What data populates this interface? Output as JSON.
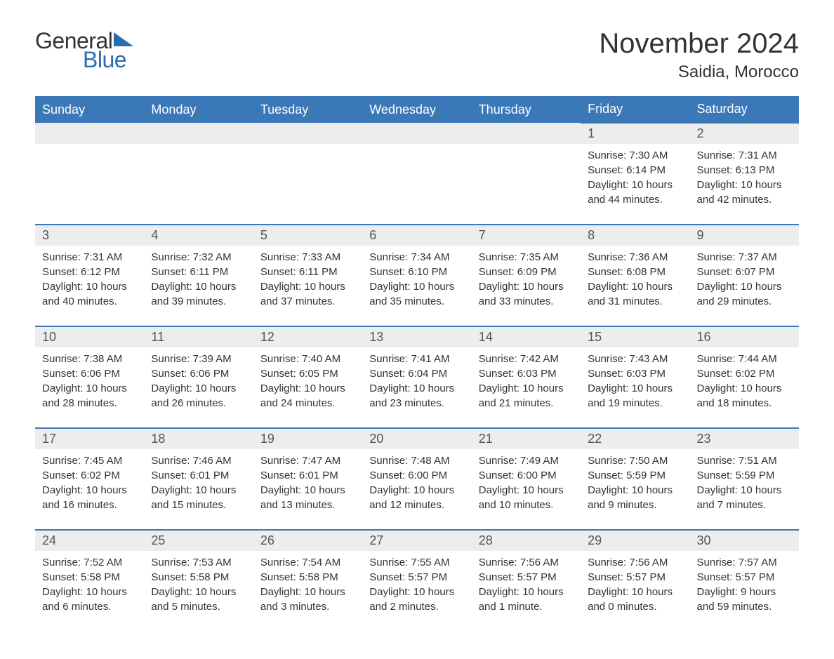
{
  "logo": {
    "text1": "General",
    "text2": "Blue",
    "tri_color": "#2b6cb0"
  },
  "title": "November 2024",
  "location": "Saidia, Morocco",
  "colors": {
    "header_bg": "#3b78b8",
    "header_text": "#ffffff",
    "daynum_bg": "#ededed",
    "text": "#333333",
    "border": "#3b78b8"
  },
  "day_headers": [
    "Sunday",
    "Monday",
    "Tuesday",
    "Wednesday",
    "Thursday",
    "Friday",
    "Saturday"
  ],
  "weeks": [
    [
      null,
      null,
      null,
      null,
      null,
      {
        "n": "1",
        "sunrise": "Sunrise: 7:30 AM",
        "sunset": "Sunset: 6:14 PM",
        "daylight": "Daylight: 10 hours and 44 minutes."
      },
      {
        "n": "2",
        "sunrise": "Sunrise: 7:31 AM",
        "sunset": "Sunset: 6:13 PM",
        "daylight": "Daylight: 10 hours and 42 minutes."
      }
    ],
    [
      {
        "n": "3",
        "sunrise": "Sunrise: 7:31 AM",
        "sunset": "Sunset: 6:12 PM",
        "daylight": "Daylight: 10 hours and 40 minutes."
      },
      {
        "n": "4",
        "sunrise": "Sunrise: 7:32 AM",
        "sunset": "Sunset: 6:11 PM",
        "daylight": "Daylight: 10 hours and 39 minutes."
      },
      {
        "n": "5",
        "sunrise": "Sunrise: 7:33 AM",
        "sunset": "Sunset: 6:11 PM",
        "daylight": "Daylight: 10 hours and 37 minutes."
      },
      {
        "n": "6",
        "sunrise": "Sunrise: 7:34 AM",
        "sunset": "Sunset: 6:10 PM",
        "daylight": "Daylight: 10 hours and 35 minutes."
      },
      {
        "n": "7",
        "sunrise": "Sunrise: 7:35 AM",
        "sunset": "Sunset: 6:09 PM",
        "daylight": "Daylight: 10 hours and 33 minutes."
      },
      {
        "n": "8",
        "sunrise": "Sunrise: 7:36 AM",
        "sunset": "Sunset: 6:08 PM",
        "daylight": "Daylight: 10 hours and 31 minutes."
      },
      {
        "n": "9",
        "sunrise": "Sunrise: 7:37 AM",
        "sunset": "Sunset: 6:07 PM",
        "daylight": "Daylight: 10 hours and 29 minutes."
      }
    ],
    [
      {
        "n": "10",
        "sunrise": "Sunrise: 7:38 AM",
        "sunset": "Sunset: 6:06 PM",
        "daylight": "Daylight: 10 hours and 28 minutes."
      },
      {
        "n": "11",
        "sunrise": "Sunrise: 7:39 AM",
        "sunset": "Sunset: 6:06 PM",
        "daylight": "Daylight: 10 hours and 26 minutes."
      },
      {
        "n": "12",
        "sunrise": "Sunrise: 7:40 AM",
        "sunset": "Sunset: 6:05 PM",
        "daylight": "Daylight: 10 hours and 24 minutes."
      },
      {
        "n": "13",
        "sunrise": "Sunrise: 7:41 AM",
        "sunset": "Sunset: 6:04 PM",
        "daylight": "Daylight: 10 hours and 23 minutes."
      },
      {
        "n": "14",
        "sunrise": "Sunrise: 7:42 AM",
        "sunset": "Sunset: 6:03 PM",
        "daylight": "Daylight: 10 hours and 21 minutes."
      },
      {
        "n": "15",
        "sunrise": "Sunrise: 7:43 AM",
        "sunset": "Sunset: 6:03 PM",
        "daylight": "Daylight: 10 hours and 19 minutes."
      },
      {
        "n": "16",
        "sunrise": "Sunrise: 7:44 AM",
        "sunset": "Sunset: 6:02 PM",
        "daylight": "Daylight: 10 hours and 18 minutes."
      }
    ],
    [
      {
        "n": "17",
        "sunrise": "Sunrise: 7:45 AM",
        "sunset": "Sunset: 6:02 PM",
        "daylight": "Daylight: 10 hours and 16 minutes."
      },
      {
        "n": "18",
        "sunrise": "Sunrise: 7:46 AM",
        "sunset": "Sunset: 6:01 PM",
        "daylight": "Daylight: 10 hours and 15 minutes."
      },
      {
        "n": "19",
        "sunrise": "Sunrise: 7:47 AM",
        "sunset": "Sunset: 6:01 PM",
        "daylight": "Daylight: 10 hours and 13 minutes."
      },
      {
        "n": "20",
        "sunrise": "Sunrise: 7:48 AM",
        "sunset": "Sunset: 6:00 PM",
        "daylight": "Daylight: 10 hours and 12 minutes."
      },
      {
        "n": "21",
        "sunrise": "Sunrise: 7:49 AM",
        "sunset": "Sunset: 6:00 PM",
        "daylight": "Daylight: 10 hours and 10 minutes."
      },
      {
        "n": "22",
        "sunrise": "Sunrise: 7:50 AM",
        "sunset": "Sunset: 5:59 PM",
        "daylight": "Daylight: 10 hours and 9 minutes."
      },
      {
        "n": "23",
        "sunrise": "Sunrise: 7:51 AM",
        "sunset": "Sunset: 5:59 PM",
        "daylight": "Daylight: 10 hours and 7 minutes."
      }
    ],
    [
      {
        "n": "24",
        "sunrise": "Sunrise: 7:52 AM",
        "sunset": "Sunset: 5:58 PM",
        "daylight": "Daylight: 10 hours and 6 minutes."
      },
      {
        "n": "25",
        "sunrise": "Sunrise: 7:53 AM",
        "sunset": "Sunset: 5:58 PM",
        "daylight": "Daylight: 10 hours and 5 minutes."
      },
      {
        "n": "26",
        "sunrise": "Sunrise: 7:54 AM",
        "sunset": "Sunset: 5:58 PM",
        "daylight": "Daylight: 10 hours and 3 minutes."
      },
      {
        "n": "27",
        "sunrise": "Sunrise: 7:55 AM",
        "sunset": "Sunset: 5:57 PM",
        "daylight": "Daylight: 10 hours and 2 minutes."
      },
      {
        "n": "28",
        "sunrise": "Sunrise: 7:56 AM",
        "sunset": "Sunset: 5:57 PM",
        "daylight": "Daylight: 10 hours and 1 minute."
      },
      {
        "n": "29",
        "sunrise": "Sunrise: 7:56 AM",
        "sunset": "Sunset: 5:57 PM",
        "daylight": "Daylight: 10 hours and 0 minutes."
      },
      {
        "n": "30",
        "sunrise": "Sunrise: 7:57 AM",
        "sunset": "Sunset: 5:57 PM",
        "daylight": "Daylight: 9 hours and 59 minutes."
      }
    ]
  ]
}
